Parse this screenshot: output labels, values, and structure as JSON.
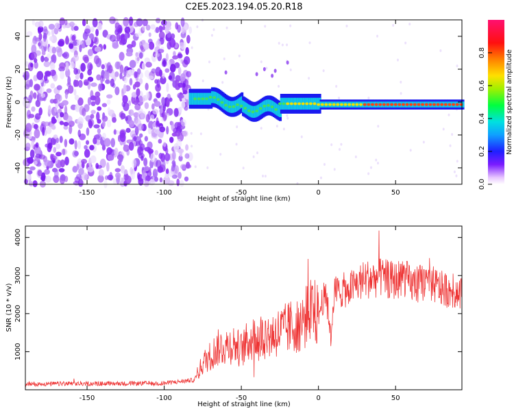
{
  "title": "C2E5.2023.194.05.20.R18",
  "chart_data": [
    {
      "type": "heatmap",
      "xlabel": "Height of straight line (km)",
      "ylabel": "Frequency (Hz)",
      "xlim": [
        -190,
        93
      ],
      "ylim": [
        -50,
        50
      ],
      "xticks": [
        -150,
        -100,
        -50,
        0,
        50
      ],
      "yticks": [
        -40,
        -20,
        0,
        20,
        40
      ],
      "colorbar": {
        "label": "Normalized spectral amplitude",
        "range": [
          0,
          1
        ],
        "ticks": [
          0.0,
          0.2,
          0.4,
          0.6,
          0.8
        ]
      }
    },
    {
      "type": "line",
      "xlabel": "Height of straight line (km)",
      "ylabel": "SNR (10 * v/v)",
      "xlim": [
        -190,
        93
      ],
      "ylim": [
        0,
        4300
      ],
      "xticks": [
        -150,
        -100,
        -50,
        0,
        50
      ],
      "yticks": [
        1000,
        2000,
        3000,
        4000
      ],
      "color": "#ee3333",
      "series": [
        {
          "name": "SNR",
          "x": [
            -190,
            -150,
            -100,
            -80,
            -75,
            -65,
            -55,
            -50,
            -45,
            -40,
            -30,
            -20,
            -10,
            -5,
            0,
            3,
            6,
            8,
            10,
            20,
            30,
            40,
            50,
            55,
            60,
            70,
            80,
            93
          ],
          "values": [
            150,
            160,
            170,
            260,
            700,
            1100,
            1200,
            1050,
            1300,
            1400,
            1450,
            1600,
            1800,
            2100,
            1950,
            2400,
            2350,
            1300,
            2550,
            2650,
            2900,
            2950,
            2850,
            3000,
            2750,
            2850,
            2650,
            2550
          ]
        }
      ]
    }
  ]
}
